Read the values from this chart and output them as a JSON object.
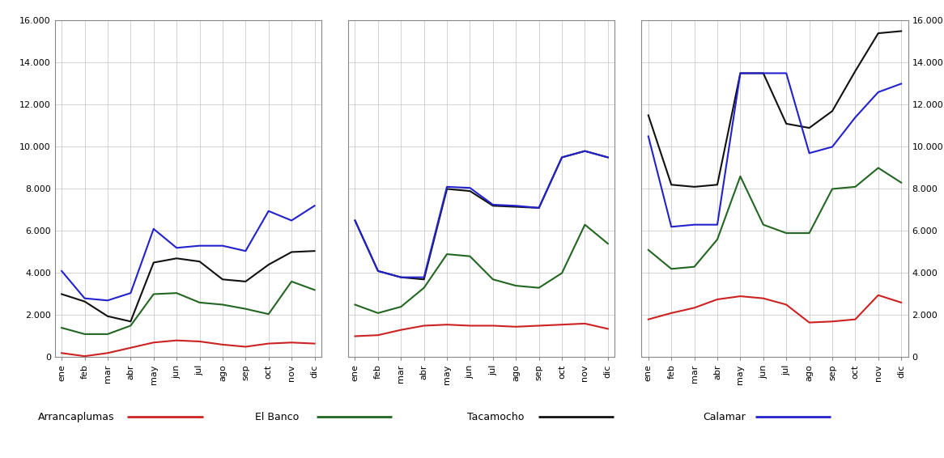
{
  "months": [
    "ene",
    "feb",
    "mar",
    "abr",
    "may",
    "jun",
    "jul",
    "ago",
    "sep",
    "oct",
    "nov",
    "dic"
  ],
  "ylim": [
    0,
    16000
  ],
  "yticks": [
    0,
    2000,
    4000,
    6000,
    8000,
    10000,
    12000,
    14000,
    16000
  ],
  "series_order": [
    "arrancaplumas",
    "el_banco",
    "tacamocho",
    "calamar"
  ],
  "series": {
    "arrancaplumas": {
      "color": "#cc2222",
      "label": "Arrancaplumas",
      "panel1": [
        200,
        50,
        200,
        450,
        700,
        800,
        750,
        600,
        500,
        650,
        700,
        650
      ],
      "panel2": [
        1000,
        1050,
        1300,
        1500,
        1550,
        1500,
        1500,
        1450,
        1500,
        1550,
        1600,
        1350
      ],
      "panel3": [
        1800,
        2100,
        2350,
        2750,
        2900,
        2800,
        2500,
        1650,
        1700,
        1800,
        2950,
        2600
      ]
    },
    "el_banco": {
      "color": "#226622",
      "label": "El Banco",
      "panel1": [
        1400,
        1100,
        1100,
        1500,
        3000,
        3050,
        2600,
        2500,
        2300,
        2050,
        3600,
        3200
      ],
      "panel2": [
        2500,
        2100,
        2400,
        3300,
        4900,
        4800,
        3700,
        3400,
        3300,
        4000,
        6300,
        5400
      ],
      "panel3": [
        5100,
        4200,
        4300,
        5600,
        8600,
        6300,
        5900,
        5900,
        8000,
        8100,
        9000,
        8300
      ]
    },
    "tacamocho": {
      "color": "#111111",
      "label": "Tacamocho",
      "panel1": [
        3000,
        2650,
        1950,
        1700,
        4500,
        4700,
        4550,
        3700,
        3600,
        4400,
        5000,
        5050
      ],
      "panel2": [
        6500,
        4100,
        3800,
        3700,
        8000,
        7900,
        7200,
        7150,
        7100,
        9500,
        9800,
        9500
      ],
      "panel3": [
        11500,
        8200,
        8100,
        8200,
        13500,
        13500,
        11100,
        10900,
        11700,
        13600,
        15400,
        15500
      ]
    },
    "calamar": {
      "color": "#2222cc",
      "label": "Calamar",
      "panel1": [
        4100,
        2800,
        2700,
        3050,
        6100,
        5200,
        5300,
        5300,
        5050,
        6950,
        6500,
        7200
      ],
      "panel2": [
        6500,
        4100,
        3800,
        3800,
        8100,
        8050,
        7250,
        7200,
        7100,
        9500,
        9800,
        9500
      ],
      "panel3": [
        10500,
        6200,
        6300,
        6300,
        13500,
        13500,
        13500,
        9700,
        10000,
        11400,
        12600,
        13000
      ]
    }
  },
  "legend": [
    {
      "label": "Arrancaplumas",
      "color": "#cc2222"
    },
    {
      "label": "El Banco",
      "color": "#226622"
    },
    {
      "label": "Tacamocho",
      "color": "#111111"
    },
    {
      "label": "Calamar",
      "color": "#2222cc"
    }
  ],
  "background_color": "#ffffff",
  "grid_color": "#cccccc",
  "tick_fontsize": 8,
  "legend_fontsize": 9,
  "linewidth": 1.5
}
